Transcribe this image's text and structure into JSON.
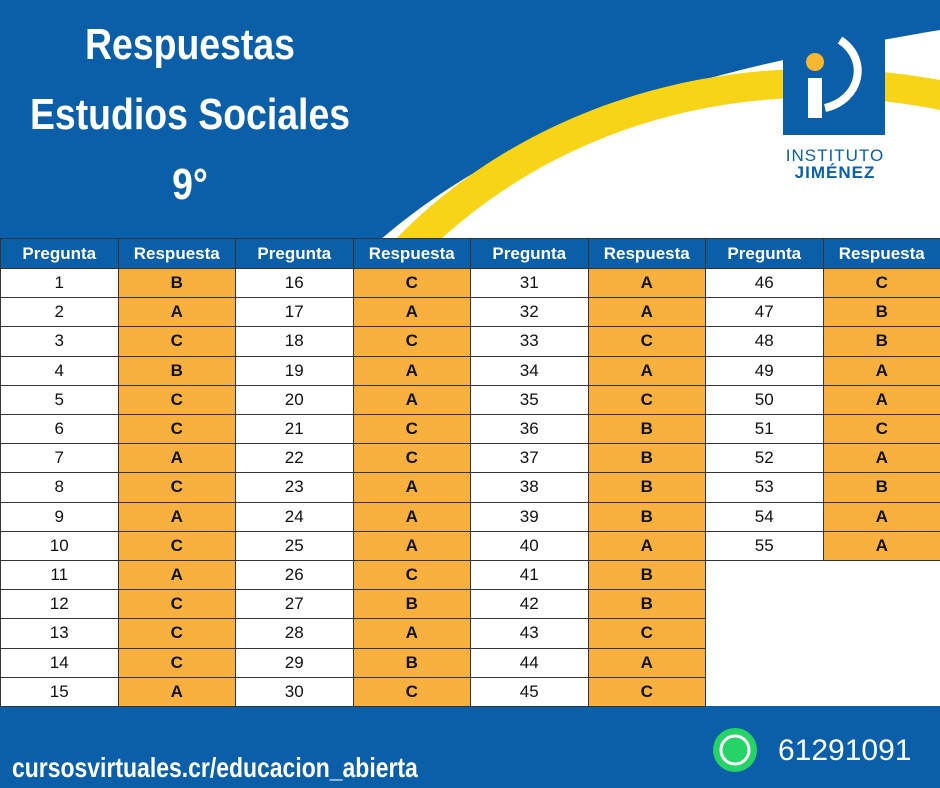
{
  "header": {
    "title_lines": [
      "Respuestas",
      "Estudios Sociales",
      "9°"
    ]
  },
  "logo": {
    "line1": "INSTITUTO",
    "line2": "JIMÉNEZ"
  },
  "table": {
    "column_headers": [
      "Pregunta",
      "Respuesta"
    ],
    "groups": [
      {
        "rows": [
          [
            1,
            "B"
          ],
          [
            2,
            "A"
          ],
          [
            3,
            "C"
          ],
          [
            4,
            "B"
          ],
          [
            5,
            "C"
          ],
          [
            6,
            "C"
          ],
          [
            7,
            "A"
          ],
          [
            8,
            "C"
          ],
          [
            9,
            "A"
          ],
          [
            10,
            "C"
          ],
          [
            11,
            "A"
          ],
          [
            12,
            "C"
          ],
          [
            13,
            "C"
          ],
          [
            14,
            "C"
          ],
          [
            15,
            "A"
          ]
        ]
      },
      {
        "rows": [
          [
            16,
            "C"
          ],
          [
            17,
            "A"
          ],
          [
            18,
            "C"
          ],
          [
            19,
            "A"
          ],
          [
            20,
            "A"
          ],
          [
            21,
            "C"
          ],
          [
            22,
            "C"
          ],
          [
            23,
            "A"
          ],
          [
            24,
            "A"
          ],
          [
            25,
            "A"
          ],
          [
            26,
            "C"
          ],
          [
            27,
            "B"
          ],
          [
            28,
            "A"
          ],
          [
            29,
            "B"
          ],
          [
            30,
            "C"
          ]
        ]
      },
      {
        "rows": [
          [
            31,
            "A"
          ],
          [
            32,
            "A"
          ],
          [
            33,
            "C"
          ],
          [
            34,
            "A"
          ],
          [
            35,
            "C"
          ],
          [
            36,
            "B"
          ],
          [
            37,
            "B"
          ],
          [
            38,
            "B"
          ],
          [
            39,
            "B"
          ],
          [
            40,
            "A"
          ],
          [
            41,
            "B"
          ],
          [
            42,
            "B"
          ],
          [
            43,
            "C"
          ],
          [
            44,
            "A"
          ],
          [
            45,
            "C"
          ]
        ]
      },
      {
        "rows": [
          [
            46,
            "C"
          ],
          [
            47,
            "B"
          ],
          [
            48,
            "B"
          ],
          [
            49,
            "A"
          ],
          [
            50,
            "A"
          ],
          [
            51,
            "C"
          ],
          [
            52,
            "A"
          ],
          [
            53,
            "B"
          ],
          [
            54,
            "A"
          ],
          [
            55,
            "A"
          ]
        ]
      }
    ]
  },
  "footer": {
    "url": "cursosvirtuales.cr/educacion_abierta",
    "phone": "61291091"
  }
}
